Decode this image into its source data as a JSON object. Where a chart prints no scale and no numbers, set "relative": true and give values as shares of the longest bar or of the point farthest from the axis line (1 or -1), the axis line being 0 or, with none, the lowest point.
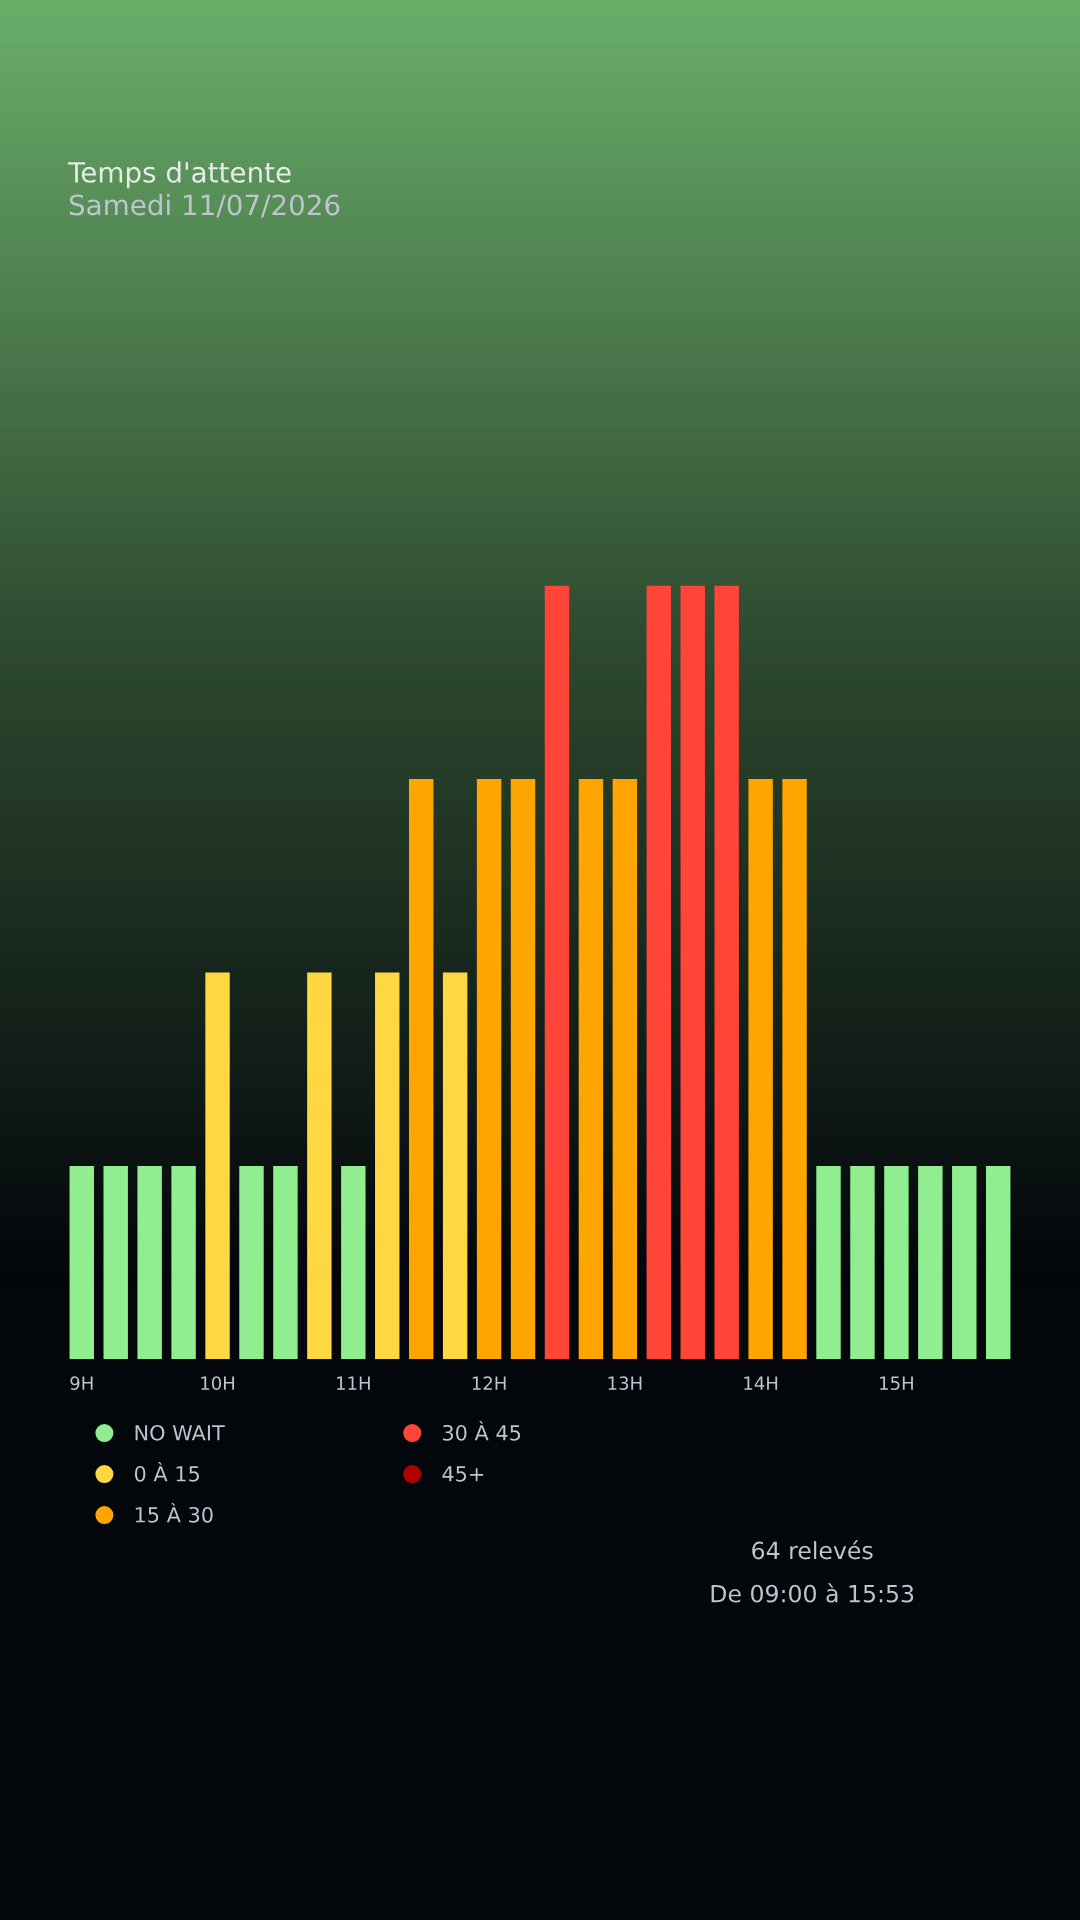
{
  "chart_data": {
    "type": "bar",
    "title": "Temps d'attente",
    "subtitle": "Samedi 11/07/2026",
    "relative": true,
    "categories": [
      "9H",
      null,
      null,
      null,
      "10H",
      null,
      null,
      null,
      "11H",
      null,
      null,
      null,
      "12H",
      null,
      null,
      null,
      "13H",
      null,
      null,
      null,
      "14H",
      null,
      null,
      null,
      "15H",
      null,
      null,
      null
    ],
    "series": [
      {
        "name": "NO WAIT",
        "color": "#90ee90",
        "values": [
          0.25,
          0.25,
          0.25,
          0.25,
          null,
          0.25,
          0.25,
          null,
          0.25,
          null,
          null,
          null,
          null,
          null,
          null,
          null,
          null,
          null,
          null,
          null,
          null,
          null,
          0.25,
          0.25,
          0.25,
          0.25,
          0.25,
          0.25
        ]
      },
      {
        "name": "0 À 15",
        "color": "#ffd740",
        "values": [
          null,
          null,
          null,
          null,
          0.5,
          null,
          null,
          0.5,
          null,
          0.5,
          null,
          0.5,
          null,
          null,
          null,
          null,
          null,
          null,
          null,
          null,
          null,
          null,
          null,
          null,
          null,
          null,
          null,
          null
        ]
      },
      {
        "name": "15 À 30",
        "color": "#ffa500",
        "values": [
          null,
          null,
          null,
          null,
          null,
          null,
          null,
          null,
          null,
          null,
          0.75,
          null,
          0.75,
          0.75,
          null,
          0.75,
          0.75,
          null,
          null,
          null,
          0.75,
          0.75,
          null,
          null,
          null,
          null,
          null,
          null
        ]
      },
      {
        "name": "30 À 45",
        "color": "#ff4538",
        "values": [
          null,
          null,
          null,
          null,
          null,
          null,
          null,
          null,
          null,
          null,
          null,
          null,
          null,
          null,
          1,
          null,
          null,
          1,
          1,
          1,
          null,
          null,
          null,
          null,
          null,
          null,
          null,
          null
        ]
      },
      {
        "name": "45+",
        "color": "#b00000",
        "values": [
          null,
          null,
          null,
          null,
          null,
          null,
          null,
          null,
          null,
          null,
          null,
          null,
          null,
          null,
          null,
          null,
          null,
          null,
          null,
          null,
          null,
          null,
          null,
          null,
          null,
          null,
          null,
          null
        ]
      }
    ],
    "legend": "bottom left",
    "marker": "circle",
    "tick_labels": "x",
    "grid": false,
    "annotations": [
      "64 relevés",
      "De 09:00 à 15:53"
    ]
  }
}
